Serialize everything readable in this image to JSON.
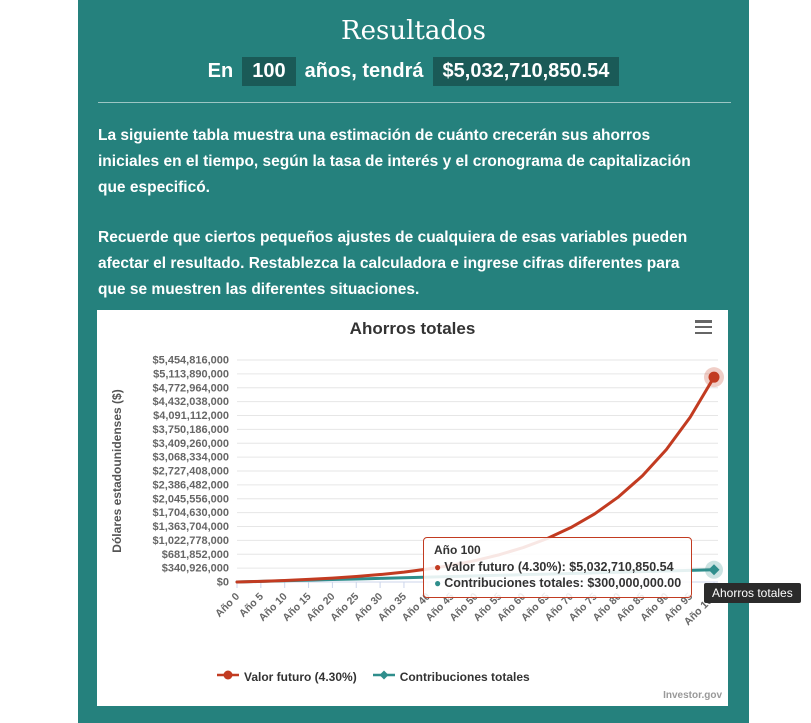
{
  "header": {
    "title": "Resultados",
    "result_prefix": "En",
    "result_years": "100",
    "result_middle": "años, tendrá",
    "result_amount": "$5,032,710,850.54"
  },
  "intro": {
    "paragraph_1": "La siguiente tabla muestra una estimación de cuánto crecerán sus ahorros iniciales en el tiempo, según la tasa de interés y el cronograma de capitalización que especificó.",
    "paragraph_2": "Recuerde que ciertos pequeños ajustes de cualquiera de esas variables pueden afectar el resultado. Restablezca la calculadora e ingrese cifras diferentes para que se muestren las diferentes situaciones."
  },
  "colors": {
    "panel_teal": "#25817d",
    "highlight_teal": "#1a5a57",
    "future_red": "#c23b21",
    "contrib_teal": "#2f8e8c"
  },
  "chart": {
    "menu_icon": "hamburger-icon",
    "credit": "Investor.gov",
    "hover_label": "Ahorros totales",
    "tooltip": {
      "title": "Año 100",
      "rows": [
        {
          "text": "Valor futuro (4.30%): $5,032,710,850.54"
        },
        {
          "text": "Contribuciones totales: $300,000,000.00"
        }
      ]
    }
  },
  "chart_data": {
    "type": "line",
    "title": "Ahorros totales",
    "xlabel": "",
    "y_axis_title": "Dólares estadounidenses ($)",
    "grid": true,
    "legend_position": "bottom",
    "ylim": [
      0,
      5454816000
    ],
    "categories": [
      "Año 0",
      "Año 5",
      "Año 10",
      "Año 15",
      "Año 20",
      "Año 25",
      "Año 30",
      "Año 35",
      "Año 40",
      "Año 45",
      "Año 50",
      "Año 55",
      "Año 60",
      "Año 65",
      "Año 70",
      "Año 75",
      "Año 80",
      "Año 85",
      "Año 90",
      "Año 95",
      "Año 100"
    ],
    "y_tick_labels": [
      "$5,454,816,000",
      "$5,113,890,000",
      "$4,772,964,000",
      "$4,432,038,000",
      "$4,091,112,000",
      "$3,750,186,000",
      "$3,409,260,000",
      "$3,068,334,000",
      "$2,727,408,000",
      "$2,386,482,000",
      "$2,045,556,000",
      "$1,704,630,000",
      "$1,363,704,000",
      "$1,022,778,000",
      "$681,852,000",
      "$340,926,000",
      "$0"
    ],
    "series": [
      {
        "name": "Valor futuro (4.30%)",
        "color": "#c23b21",
        "marker": "circle",
        "values": [
          0,
          16700000,
          37400000,
          63050000,
          94850000,
          134250000,
          183100000,
          243650000,
          318700000,
          411700000,
          526900000,
          669800000,
          846900000,
          1066300000,
          1338300000,
          1675400000,
          2093200000,
          2611000000,
          3252700000,
          4048000000,
          5032710850.54
        ]
      },
      {
        "name": "Contribuciones totales",
        "color": "#2f8e8c",
        "marker": "diamond",
        "values": [
          0,
          15000000,
          30000000,
          45000000,
          60000000,
          75000000,
          90000000,
          105000000,
          120000000,
          135000000,
          150000000,
          165000000,
          180000000,
          195000000,
          210000000,
          225000000,
          240000000,
          255000000,
          270000000,
          285000000,
          300000000
        ]
      }
    ]
  }
}
